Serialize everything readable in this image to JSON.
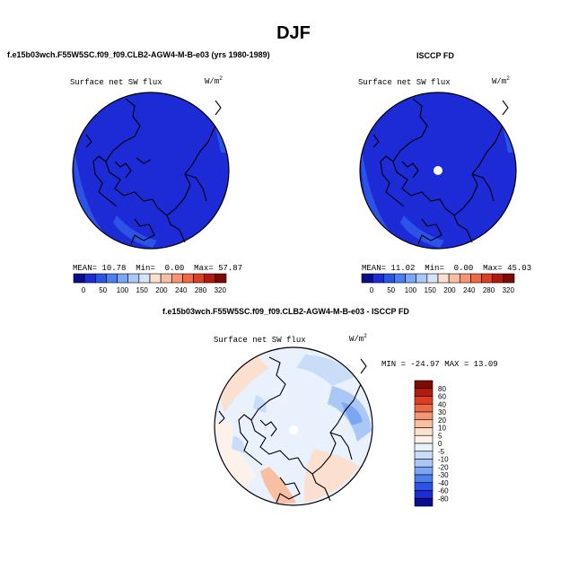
{
  "figure": {
    "title": "DJF",
    "panels": [
      {
        "header": "f.e15b03wch.F55W5SC.f09_f09.CLB2-AGW4-M-B-e03 (yrs 1980-1989)",
        "subtitle": "Surface net SW flux",
        "units": "W/m",
        "units_sup": "2",
        "stats": {
          "mean_label": "MEAN=",
          "mean": "10.78",
          "min_label": "Min=",
          "min": "0.00",
          "max_label": "Max=",
          "max": "57.87"
        }
      },
      {
        "header": "ISCCP FD",
        "subtitle": "Surface net SW flux",
        "units": "W/m",
        "units_sup": "2",
        "stats": {
          "mean_label": "MEAN=",
          "mean": "11.02",
          "min_label": "Min=",
          "min": "0.00",
          "max_label": "Max=",
          "max": "45.03"
        }
      },
      {
        "header": "f.e15b03wch.F55W5SC.f09_f09.CLB2-AGW4-M-B-e03 - ISCCP FD",
        "subtitle": "Surface net SW flux",
        "units": "W/m",
        "units_sup": "2",
        "minmax": "MIN = -24.97 MAX =  13.09"
      }
    ]
  },
  "chart_data": {
    "type": "heatmap",
    "projection": "north polar stereographic",
    "season": "DJF",
    "field": "Surface net SW flux",
    "units": "W/m2",
    "colorbars": {
      "absolute": {
        "orientation": "horizontal",
        "tick_labels": [
          "0",
          "50",
          "100",
          "150",
          "200",
          "240",
          "280",
          "320"
        ],
        "colors": [
          "#0c0c8e",
          "#1c2bd6",
          "#2c52e6",
          "#4b7ff0",
          "#7aa6f5",
          "#a9c8f7",
          "#d4e4fa",
          "#fbe0d0",
          "#f9bfa3",
          "#f59575",
          "#ee6a47",
          "#de3e22",
          "#b31a0f",
          "#7c0a05"
        ]
      },
      "difference": {
        "orientation": "vertical",
        "tick_labels": [
          "80",
          "60",
          "40",
          "30",
          "20",
          "10",
          "5",
          "0",
          "-5",
          "-10",
          "-20",
          "-30",
          "-40",
          "-60",
          "-80"
        ],
        "colors": [
          "#7c0a05",
          "#b31a0f",
          "#de3e22",
          "#ee6a47",
          "#f59575",
          "#f9bfa3",
          "#fbe0d0",
          "#fdf2ea",
          "#e9f1fd",
          "#c9dcf8",
          "#a9c8f7",
          "#7aa6f5",
          "#4b7ff0",
          "#2c52e6",
          "#1c2bd6",
          "#0c0c8e"
        ]
      }
    },
    "panels": [
      {
        "name": "model",
        "mean": 10.78,
        "min": 0.0,
        "max": 57.87,
        "dominant_color": "#1c2bd6"
      },
      {
        "name": "ISCCP FD",
        "mean": 11.02,
        "min": 0.0,
        "max": 45.03,
        "dominant_color": "#1c2bd6",
        "missing_pole": true
      },
      {
        "name": "model - ISCCP FD",
        "min": -24.97,
        "max": 13.09,
        "dominant_color": "#e9f1fd"
      }
    ]
  }
}
